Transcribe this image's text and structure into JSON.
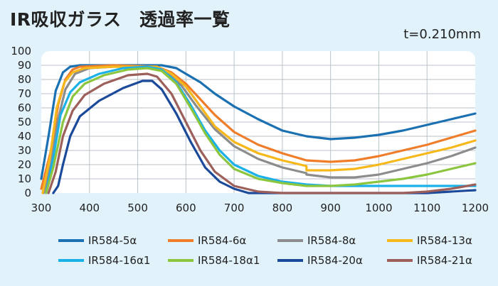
{
  "chart_data": {
    "type": "line",
    "title": "IR吸収ガラス　透過率一覧",
    "subtitle": "t=0.210mm",
    "xlabel": "",
    "ylabel": "",
    "xlim": [
      300,
      1200
    ],
    "ylim": [
      0,
      100
    ],
    "xticks": [
      300,
      400,
      500,
      600,
      700,
      800,
      900,
      1000,
      1100,
      1200
    ],
    "yticks": [
      0,
      10,
      20,
      30,
      40,
      50,
      60,
      70,
      80,
      90,
      100
    ],
    "grid": true,
    "legend_position": "bottom",
    "series": [
      {
        "name": "IR584-5α",
        "color": "#1a70b0",
        "points": [
          [
            300,
            10
          ],
          [
            315,
            40
          ],
          [
            330,
            72
          ],
          [
            345,
            85
          ],
          [
            360,
            89
          ],
          [
            380,
            90
          ],
          [
            450,
            90
          ],
          [
            520,
            90
          ],
          [
            550,
            90
          ],
          [
            580,
            88
          ],
          [
            600,
            84
          ],
          [
            630,
            78
          ],
          [
            660,
            70
          ],
          [
            700,
            61
          ],
          [
            750,
            52
          ],
          [
            800,
            44
          ],
          [
            850,
            40
          ],
          [
            900,
            38
          ],
          [
            950,
            39
          ],
          [
            1000,
            41
          ],
          [
            1050,
            44
          ],
          [
            1100,
            48
          ],
          [
            1150,
            52
          ],
          [
            1200,
            56
          ]
        ]
      },
      {
        "name": "IR584-6α",
        "color": "#ef7d2a",
        "points": [
          [
            300,
            3
          ],
          [
            320,
            30
          ],
          [
            335,
            62
          ],
          [
            350,
            80
          ],
          [
            365,
            87
          ],
          [
            380,
            89
          ],
          [
            450,
            90
          ],
          [
            540,
            89
          ],
          [
            570,
            85
          ],
          [
            600,
            77
          ],
          [
            630,
            66
          ],
          [
            660,
            55
          ],
          [
            700,
            43
          ],
          [
            750,
            34
          ],
          [
            800,
            28
          ],
          [
            840,
            24
          ],
          [
            850,
            23
          ],
          [
            900,
            22
          ],
          [
            950,
            23
          ],
          [
            1000,
            26
          ],
          [
            1050,
            30
          ],
          [
            1100,
            34
          ],
          [
            1150,
            39
          ],
          [
            1200,
            44
          ]
        ]
      },
      {
        "name": "IR584-8α",
        "color": "#8c8c8c",
        "points": [
          [
            305,
            0
          ],
          [
            320,
            20
          ],
          [
            335,
            52
          ],
          [
            350,
            73
          ],
          [
            370,
            84
          ],
          [
            400,
            88
          ],
          [
            450,
            89
          ],
          [
            530,
            89
          ],
          [
            560,
            85
          ],
          [
            590,
            76
          ],
          [
            620,
            62
          ],
          [
            660,
            45
          ],
          [
            700,
            33
          ],
          [
            750,
            24
          ],
          [
            800,
            18
          ],
          [
            850,
            14
          ],
          [
            850,
            13
          ],
          [
            900,
            11
          ],
          [
            950,
            11
          ],
          [
            1000,
            13
          ],
          [
            1050,
            17
          ],
          [
            1100,
            21
          ],
          [
            1150,
            26
          ],
          [
            1200,
            32
          ]
        ]
      },
      {
        "name": "IR584-13α",
        "color": "#f6b81a",
        "points": [
          [
            303,
            0
          ],
          [
            318,
            25
          ],
          [
            332,
            60
          ],
          [
            348,
            78
          ],
          [
            365,
            85
          ],
          [
            390,
            88
          ],
          [
            450,
            89
          ],
          [
            540,
            89
          ],
          [
            570,
            84
          ],
          [
            600,
            75
          ],
          [
            630,
            61
          ],
          [
            660,
            47
          ],
          [
            700,
            36
          ],
          [
            750,
            28
          ],
          [
            800,
            23
          ],
          [
            850,
            19
          ],
          [
            850,
            16
          ],
          [
            900,
            16
          ],
          [
            950,
            17
          ],
          [
            1000,
            20
          ],
          [
            1050,
            24
          ],
          [
            1100,
            28
          ],
          [
            1150,
            32
          ],
          [
            1200,
            37
          ]
        ]
      },
      {
        "name": "IR584-16α1",
        "color": "#1ab0e8",
        "points": [
          [
            310,
            0
          ],
          [
            325,
            25
          ],
          [
            340,
            55
          ],
          [
            360,
            71
          ],
          [
            380,
            78
          ],
          [
            420,
            84
          ],
          [
            470,
            88
          ],
          [
            520,
            89
          ],
          [
            550,
            87
          ],
          [
            580,
            78
          ],
          [
            610,
            62
          ],
          [
            640,
            44
          ],
          [
            670,
            30
          ],
          [
            700,
            20
          ],
          [
            750,
            12
          ],
          [
            800,
            8
          ],
          [
            850,
            6
          ],
          [
            900,
            5
          ],
          [
            950,
            5
          ],
          [
            1000,
            5
          ],
          [
            1050,
            5
          ],
          [
            1100,
            5
          ],
          [
            1150,
            5
          ],
          [
            1200,
            5
          ]
        ]
      },
      {
        "name": "IR584-18α1",
        "color": "#8cc63f",
        "points": [
          [
            310,
            0
          ],
          [
            325,
            18
          ],
          [
            345,
            50
          ],
          [
            365,
            68
          ],
          [
            390,
            77
          ],
          [
            430,
            83
          ],
          [
            480,
            87
          ],
          [
            520,
            88
          ],
          [
            550,
            86
          ],
          [
            580,
            77
          ],
          [
            610,
            60
          ],
          [
            640,
            42
          ],
          [
            670,
            27
          ],
          [
            700,
            17
          ],
          [
            750,
            10
          ],
          [
            800,
            7
          ],
          [
            850,
            5
          ],
          [
            900,
            5
          ],
          [
            950,
            6
          ],
          [
            1000,
            8
          ],
          [
            1050,
            10
          ],
          [
            1100,
            13
          ],
          [
            1150,
            17
          ],
          [
            1200,
            21
          ]
        ]
      },
      {
        "name": "IR584-20α",
        "color": "#1c4a9a",
        "points": [
          [
            325,
            0
          ],
          [
            335,
            5
          ],
          [
            345,
            20
          ],
          [
            360,
            40
          ],
          [
            380,
            54
          ],
          [
            420,
            65
          ],
          [
            470,
            74
          ],
          [
            510,
            79
          ],
          [
            530,
            79
          ],
          [
            550,
            73
          ],
          [
            580,
            56
          ],
          [
            610,
            36
          ],
          [
            640,
            18
          ],
          [
            670,
            8
          ],
          [
            700,
            3
          ],
          [
            730,
            0
          ],
          [
            1100,
            0
          ],
          [
            1150,
            1
          ],
          [
            1200,
            2
          ]
        ]
      },
      {
        "name": "IR584-21α",
        "color": "#9c5f5a",
        "points": [
          [
            315,
            0
          ],
          [
            330,
            15
          ],
          [
            345,
            40
          ],
          [
            365,
            58
          ],
          [
            390,
            69
          ],
          [
            430,
            77
          ],
          [
            480,
            83
          ],
          [
            520,
            84
          ],
          [
            540,
            82
          ],
          [
            570,
            70
          ],
          [
            600,
            50
          ],
          [
            630,
            30
          ],
          [
            660,
            15
          ],
          [
            700,
            5
          ],
          [
            750,
            1
          ],
          [
            800,
            0
          ],
          [
            1050,
            0
          ],
          [
            1100,
            1
          ],
          [
            1150,
            3
          ],
          [
            1200,
            6
          ]
        ]
      }
    ]
  }
}
